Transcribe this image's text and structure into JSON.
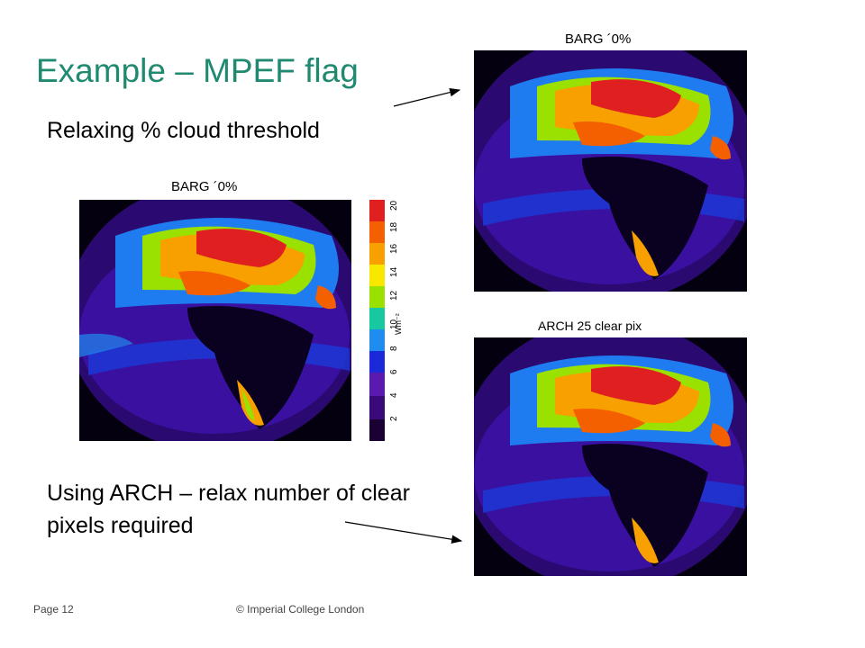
{
  "slide": {
    "title": "Example – MPEF flag",
    "relax_text": "Relaxing  % cloud threshold",
    "arch_text": "Using ARCH – relax number of clear pixels required"
  },
  "maps": {
    "center_label": "BARG ´0%",
    "top_right_label": "BARG ´0%",
    "bottom_right_label": "ARCH  25  clear  pix"
  },
  "colorbar": {
    "ticks": [
      "2",
      "4",
      "6",
      "8",
      "10",
      "12",
      "14",
      "16",
      "18",
      "20"
    ],
    "unit": "Wm⁻²",
    "colors": [
      "#1a0033",
      "#3a0a7a",
      "#5a1ab0",
      "#1a2ad8",
      "#1f8cf0",
      "#18c8a0",
      "#9ae000",
      "#f8e800",
      "#f7a000",
      "#f46000",
      "#e02020"
    ]
  },
  "footer": {
    "page": "Page 12",
    "copyright": "© Imperial College London"
  }
}
